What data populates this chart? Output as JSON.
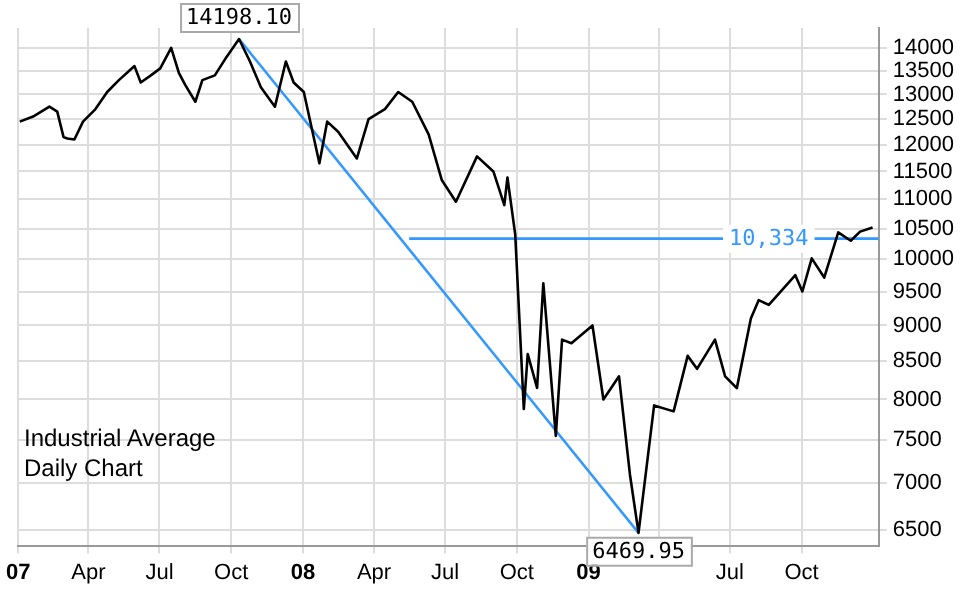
{
  "chart_data": {
    "type": "line",
    "title": "Industrial Average",
    "subtitle": "Daily Chart",
    "xlim": [
      "2007-01-01",
      "2010-01-08"
    ],
    "xticks": [
      {
        "value": "2007-01-01",
        "label": "07"
      },
      {
        "value": "2007-04-01",
        "label": "Apr"
      },
      {
        "value": "2007-07-01",
        "label": "Jul"
      },
      {
        "value": "2007-10-01",
        "label": "Oct"
      },
      {
        "value": "2008-01-01",
        "label": "08"
      },
      {
        "value": "2008-04-01",
        "label": "Apr"
      },
      {
        "value": "2008-07-01",
        "label": "Jul"
      },
      {
        "value": "2008-10-01",
        "label": "Oct"
      },
      {
        "value": "2009-01-01",
        "label": "09"
      },
      {
        "value": "2009-04-01",
        "label": null
      },
      {
        "value": "2009-07-01",
        "label": "Jul"
      },
      {
        "value": "2009-10-01",
        "label": "Oct"
      }
    ],
    "ylim": [
      6340,
      14450
    ],
    "log": "y",
    "grid": true,
    "legend": false,
    "marker": "none",
    "line_style": "solid",
    "yticks": [
      6500,
      7000,
      7500,
      8000,
      8500,
      9000,
      9500,
      10000,
      10500,
      11000,
      11500,
      12000,
      12500,
      13000,
      13500,
      14000
    ],
    "series": [
      {
        "color": "#000000",
        "x": [
          "2007-01-03",
          "2007-01-20",
          "2007-02-10",
          "2007-02-20",
          "2007-02-28",
          "2007-03-05",
          "2007-03-14",
          "2007-03-25",
          "2007-04-10",
          "2007-04-25",
          "2007-05-10",
          "2007-05-30",
          "2007-06-07",
          "2007-06-20",
          "2007-07-02",
          "2007-07-16",
          "2007-07-26",
          "2007-08-03",
          "2007-08-16",
          "2007-08-25",
          "2007-09-10",
          "2007-09-25",
          "2007-10-11",
          "2007-10-25",
          "2007-11-08",
          "2007-11-26",
          "2007-12-10",
          "2007-12-20",
          "2008-01-02",
          "2008-01-22",
          "2008-02-01",
          "2008-02-15",
          "2008-03-10",
          "2008-03-25",
          "2008-04-15",
          "2008-05-02",
          "2008-05-20",
          "2008-06-10",
          "2008-06-27",
          "2008-07-15",
          "2008-08-11",
          "2008-09-01",
          "2008-09-15",
          "2008-09-19",
          "2008-09-29",
          "2008-10-10",
          "2008-10-15",
          "2008-10-27",
          "2008-11-04",
          "2008-11-20",
          "2008-11-28",
          "2008-12-10",
          "2009-01-06",
          "2009-01-20",
          "2009-02-09",
          "2009-02-23",
          "2009-03-06",
          "2009-03-26",
          "2009-04-20",
          "2009-05-08",
          "2009-05-20",
          "2009-06-12",
          "2009-06-25",
          "2009-07-10",
          "2009-07-28",
          "2009-08-07",
          "2009-08-20",
          "2009-09-23",
          "2009-10-02",
          "2009-10-14",
          "2009-10-30",
          "2009-11-17",
          "2009-12-03",
          "2009-12-15",
          "2009-12-31"
        ],
        "values": [
          12450,
          12550,
          12750,
          12650,
          12150,
          12120,
          12100,
          12450,
          12700,
          13050,
          13300,
          13600,
          13250,
          13400,
          13550,
          14000,
          13450,
          13200,
          12850,
          13300,
          13400,
          13800,
          14198.1,
          13700,
          13150,
          12750,
          13700,
          13250,
          13050,
          11650,
          12450,
          12250,
          11740,
          12500,
          12700,
          13050,
          12850,
          12200,
          11340,
          10960,
          11780,
          11500,
          10900,
          11390,
          10400,
          7880,
          8600,
          8150,
          9625,
          7550,
          8800,
          8750,
          9000,
          8000,
          8300,
          7100,
          6469.95,
          7925,
          7850,
          8575,
          8400,
          8800,
          8300,
          8146,
          9100,
          9370,
          9300,
          9750,
          9500,
          10015,
          9713,
          10437,
          10300,
          10450,
          10520
        ]
      },
      {
        "color": "#3399ff",
        "x": [
          "2007-10-11",
          "2009-03-06"
        ],
        "values": [
          14198.1,
          6469.95
        ]
      },
      {
        "color": "#3399ff",
        "x": [
          "2008-05-16",
          "2010-01-08"
        ],
        "values": [
          10334,
          10334
        ]
      }
    ],
    "annotations": [
      {
        "text": "14198.10",
        "x": "2007-10-11",
        "y": 14198.1
      },
      {
        "text": "6469.95",
        "x": "2009-03-06",
        "y": 6469.95
      },
      {
        "text": "10,334",
        "x": "2009-08-20",
        "y": 10334
      }
    ]
  }
}
